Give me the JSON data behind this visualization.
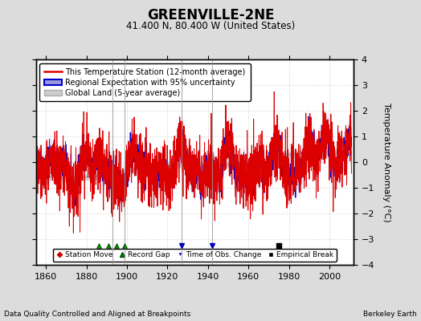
{
  "title": "GREENVILLE-2NE",
  "subtitle": "41.400 N, 80.400 W (United States)",
  "ylabel": "Temperature Anomaly (°C)",
  "xlabel_note": "Data Quality Controlled and Aligned at Breakpoints",
  "credit": "Berkeley Earth",
  "ylim": [
    -4,
    4
  ],
  "xlim": [
    1855,
    2012
  ],
  "xticks": [
    1860,
    1880,
    1900,
    1920,
    1940,
    1960,
    1980,
    2000
  ],
  "yticks": [
    -4,
    -3,
    -2,
    -1,
    0,
    1,
    2,
    3,
    4
  ],
  "bg_color": "#dcdcdc",
  "plot_bg_color": "#ffffff",
  "grid_color": "#c0c0c0",
  "red_line_color": "#dd0000",
  "blue_line_color": "#0000cc",
  "blue_fill_color": "#9999dd",
  "gray_line_color": "#aaaaaa",
  "gray_fill_color": "#cccccc",
  "legend_items": [
    "This Temperature Station (12-month average)",
    "Regional Expectation with 95% uncertainty",
    "Global Land (5-year average)"
  ],
  "marker_events": {
    "record_gaps": [
      1886,
      1891,
      1895,
      1899
    ],
    "time_obs_changes": [
      1927,
      1942
    ],
    "empirical_breaks": [
      1975
    ],
    "station_moves": []
  },
  "vertical_lines": [
    1893,
    1899,
    1927,
    1942
  ]
}
